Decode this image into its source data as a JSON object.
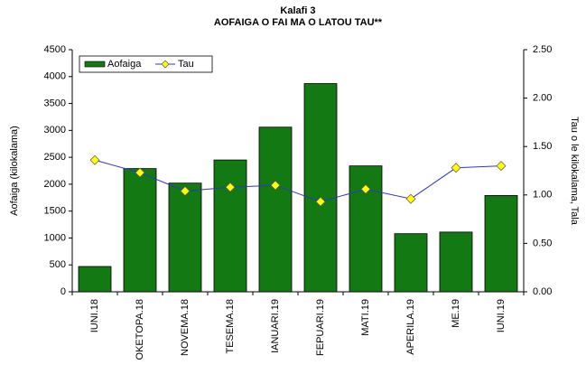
{
  "chart_data": {
    "type": "bar",
    "title": "Kalafi 3",
    "subtitle": "AOFAIGA O FAI MA O LATOU TAU**",
    "y_label": "Aofaiga (kilokalama)",
    "y2_label": "Tau o le kilokalama, Tala",
    "categories": [
      "IUNI.18",
      "OKETOPA.18",
      "NOVEMA.18",
      "TESEMA.18",
      "IANUARI.19",
      "FEPUARI.19",
      "MATI.19",
      "APERILA.19",
      "ME.19",
      "IUNI.19"
    ],
    "series": [
      {
        "name": "Aofaiga",
        "type": "bar",
        "color": "#137a13",
        "values": [
          470,
          2290,
          2020,
          2450,
          3060,
          3870,
          2340,
          1080,
          1110,
          1790
        ]
      },
      {
        "name": "Tau",
        "type": "line",
        "axis": "y2",
        "color": "#3333cc",
        "marker_color": "#ffff00",
        "values": [
          1.36,
          1.23,
          1.04,
          1.08,
          1.1,
          0.93,
          1.06,
          0.96,
          1.28,
          1.3
        ]
      }
    ],
    "ylim": [
      0,
      4500
    ],
    "yticks": [
      0,
      500,
      1000,
      1500,
      2000,
      2500,
      3000,
      3500,
      4000,
      4500
    ],
    "y2lim": [
      0,
      2.5
    ],
    "y2ticks": [
      {
        "value": 0,
        "label": "0.00"
      },
      {
        "value": 0.5,
        "label": "0.50"
      },
      {
        "value": 1,
        "label": "1.00"
      },
      {
        "value": 1.5,
        "label": "1.50"
      },
      {
        "value": 2,
        "label": "2.00"
      },
      {
        "value": 2.5,
        "label": "2.50"
      }
    ],
    "legend": "top-left",
    "grid": false
  }
}
